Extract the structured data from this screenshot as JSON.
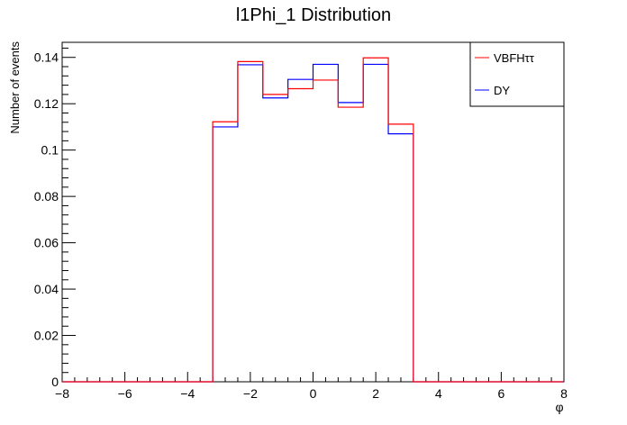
{
  "chart_data": {
    "type": "step-histogram",
    "title": "l1Phi_1 Distribution",
    "xlabel": "φ",
    "ylabel": "Number of events",
    "xlim": [
      -8,
      8
    ],
    "ylim": [
      0,
      0.1465
    ],
    "x_ticks": [
      -8,
      -6,
      -4,
      -2,
      0,
      2,
      4,
      6,
      8
    ],
    "x_tick_labels": [
      "−8",
      "−6",
      "−4",
      "−2",
      "0",
      "2",
      "4",
      "6",
      "8"
    ],
    "y_ticks": [
      0,
      0.02,
      0.04,
      0.06,
      0.08,
      0.1,
      0.12,
      0.14
    ],
    "y_tick_labels": [
      "0",
      "0.02",
      "0.04",
      "0.06",
      "0.08",
      "0.1",
      "0.12",
      "0.14"
    ],
    "grid": false,
    "legend_position": "top-right",
    "bin_edges": [
      -8.0,
      -7.36,
      -6.72,
      -6.08,
      -5.44,
      -4.8,
      -4.16,
      -3.52,
      -3.2,
      -2.4,
      -1.6,
      -0.8,
      0.0,
      0.8,
      1.6,
      2.4,
      3.2,
      3.52,
      4.16,
      4.8,
      5.44,
      6.08,
      6.72,
      7.36,
      8.0
    ],
    "series": [
      {
        "name": "VBFHττ",
        "color": "#ff0000",
        "values": [
          0,
          0,
          0,
          0,
          0,
          0,
          0,
          0,
          0.1122,
          0.1382,
          0.124,
          0.1265,
          0.1302,
          0.1185,
          0.1398,
          0.1112,
          0,
          0,
          0,
          0,
          0,
          0,
          0,
          0
        ]
      },
      {
        "name": "DY",
        "color": "#0000ff",
        "values": [
          0,
          0,
          0,
          0,
          0,
          0,
          0,
          0,
          0.11,
          0.1368,
          0.1225,
          0.1305,
          0.137,
          0.1205,
          0.137,
          0.107,
          0,
          0,
          0,
          0,
          0,
          0,
          0,
          0
        ]
      }
    ]
  }
}
